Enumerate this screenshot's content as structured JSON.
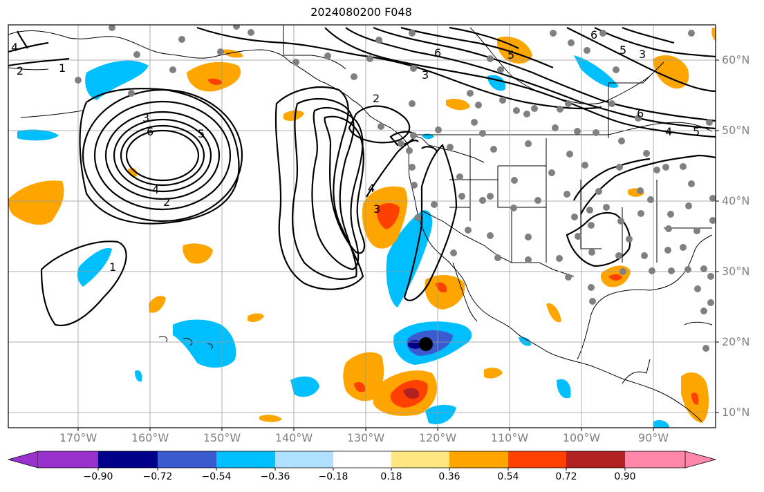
{
  "title": "2024080200 F048",
  "longitude_labels": [
    "170°W",
    "160°W",
    "150°W",
    "140°W",
    "130°W",
    "120°W",
    "110°W",
    "100°W",
    "90°W"
  ],
  "latitude_labels": [
    "60°N",
    "50°N",
    "40°N",
    "30°N",
    "20°N",
    "10°N"
  ],
  "colorbar": {
    "ticks": [
      "−0.90",
      "−0.72",
      "−0.54",
      "−0.36",
      "−0.18",
      "0.18",
      "0.36",
      "0.54",
      "0.72",
      "0.90"
    ],
    "colors": [
      "#9932cc",
      "#00008b",
      "#3a5bcf",
      "#00bfff",
      "#b0e0ff",
      "#ffffff",
      "#ffe680",
      "#ffa500",
      "#ff4000",
      "#b22222",
      "#ff88aa"
    ]
  },
  "contour_labels": [
    "1",
    "2",
    "3",
    "4",
    "5",
    "6"
  ],
  "marker": "black-dot-near-20N-120W",
  "station_dot_color": "#808080"
}
